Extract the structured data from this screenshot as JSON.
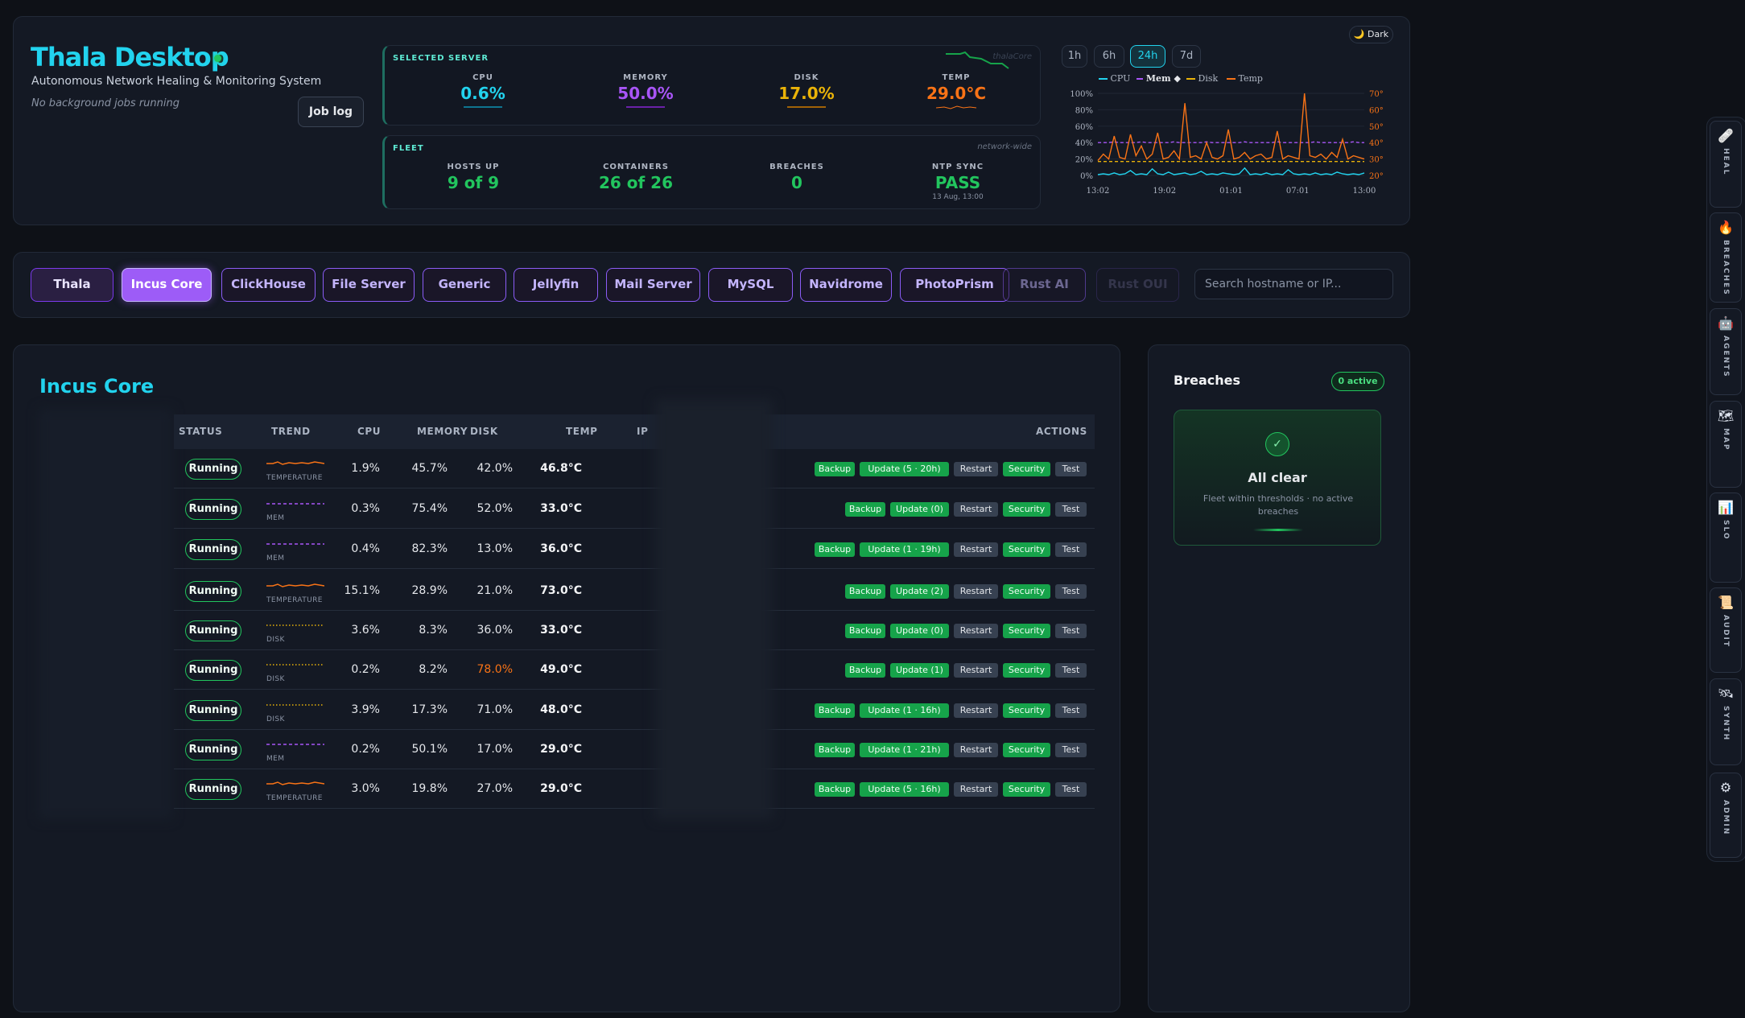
{
  "header": {
    "app_title": "Thala Desktop",
    "subtitle": "Autonomous Network Healing & Monitoring System",
    "job_status": "No background jobs running",
    "job_log_label": "Job log"
  },
  "selected_server": {
    "title": "SELECTED SERVER",
    "host_note": "thalaCore",
    "metrics": [
      {
        "label": "CPU",
        "value": "0.6%",
        "color": "#22d3ee"
      },
      {
        "label": "MEMORY",
        "value": "50.0%",
        "color": "#a855f7"
      },
      {
        "label": "DISK",
        "value": "17.0%",
        "color": "#eab308"
      },
      {
        "label": "TEMP",
        "value": "29.0°C",
        "color": "#f97316"
      }
    ]
  },
  "fleet": {
    "title": "FLEET",
    "note": "network-wide",
    "metrics": [
      {
        "label": "HOSTS UP",
        "value": "9 of 9",
        "color": "#22c55e"
      },
      {
        "label": "CONTAINERS",
        "value": "26 of 26",
        "color": "#22c55e"
      },
      {
        "label": "BREACHES",
        "value": "0",
        "color": "#22c55e"
      },
      {
        "label": "NTP SYNC",
        "value": "PASS",
        "color": "#22c55e",
        "sub": "13 Aug, 13:00"
      }
    ]
  },
  "range": {
    "buttons": [
      "1h",
      "6h",
      "24h",
      "7d"
    ],
    "active": "24h",
    "theme_toggle": "🌙 Dark"
  },
  "chart_data": {
    "type": "line",
    "series": [
      {
        "name": "CPU",
        "color": "#22d3ee",
        "dash": "solid",
        "values": [
          1,
          2,
          1,
          3,
          1,
          2,
          6,
          1,
          2,
          1,
          8,
          2,
          1,
          4,
          1,
          2,
          3,
          1,
          2,
          5,
          1,
          2,
          1,
          3,
          2,
          1,
          2,
          9,
          1,
          2,
          1,
          3,
          1,
          2,
          1,
          7,
          2,
          1,
          2,
          1,
          3,
          1,
          2,
          1,
          4,
          2,
          1,
          2,
          1,
          3
        ]
      },
      {
        "name": "Mem",
        "color": "#a855f7",
        "dash": "dashed",
        "values": [
          40,
          40,
          40,
          41,
          40,
          40,
          40,
          40,
          41,
          40,
          40,
          40,
          40,
          40,
          41,
          40,
          40,
          40,
          40,
          40,
          41,
          40,
          40,
          40,
          40,
          40,
          40,
          41,
          40,
          40,
          40,
          40,
          40,
          41,
          40,
          40,
          40,
          40,
          40,
          40,
          41,
          40,
          40,
          40,
          40,
          40,
          40,
          41,
          40,
          40
        ]
      },
      {
        "name": "Disk",
        "color": "#eab308",
        "dash": "dashed",
        "values": [
          17,
          17,
          17,
          17,
          17,
          17,
          17,
          17,
          17,
          17,
          17,
          17,
          17,
          17,
          17,
          17,
          17,
          17,
          17,
          17,
          17,
          17,
          17,
          17,
          17,
          17,
          17,
          17,
          17,
          17,
          17,
          17,
          17,
          17,
          17,
          17,
          17,
          17,
          17,
          17,
          17,
          17,
          17,
          17,
          17,
          17,
          17,
          17,
          17,
          17
        ]
      },
      {
        "name": "Temp",
        "color": "#f97316",
        "dash": "solid",
        "axis": "right",
        "values": [
          29,
          33,
          30,
          44,
          31,
          30,
          45,
          32,
          38,
          30,
          33,
          46,
          30,
          31,
          35,
          30,
          64,
          31,
          32,
          30,
          40,
          31,
          30,
          32,
          48,
          30,
          31,
          34,
          30,
          32,
          33,
          30,
          31,
          47,
          30,
          32,
          31,
          30,
          70,
          32,
          31,
          33,
          30,
          34,
          31,
          42,
          30,
          32,
          31,
          30
        ]
      }
    ],
    "x_ticks": [
      "13:02",
      "19:02",
      "01:01",
      "07:01",
      "13:00"
    ],
    "y_left_ticks": [
      "100%",
      "80%",
      "60%",
      "40%",
      "20%",
      "0%"
    ],
    "y_right_ticks": [
      "70°",
      "60°",
      "50°",
      "40°",
      "30°",
      "20°"
    ],
    "ylim_left": [
      0,
      100
    ],
    "ylim_right": [
      20,
      70
    ],
    "legend_position": "top"
  },
  "tabs": {
    "items": [
      "Thala",
      "Incus Core",
      "ClickHouse",
      "File Server",
      "Generic",
      "Jellyfin",
      "Mail Server",
      "MySQL",
      "Navidrome",
      "PhotoPrism",
      "Rust AI",
      "Rust OUI"
    ],
    "active": "Incus Core"
  },
  "search": {
    "placeholder": "Search hostname or IP..."
  },
  "section": {
    "title": "Incus Core"
  },
  "table": {
    "columns": [
      "STATUS",
      "TREND",
      "CPU",
      "MEMORY",
      "DISK",
      "TEMP",
      "IP",
      "ACTIONS"
    ],
    "rows": [
      {
        "status": "Running",
        "trend": "TEMPERATURE",
        "trend_color": "#f97316",
        "cpu": "1.9%",
        "memory": "45.7%",
        "disk": "42.0%",
        "temp": "46.8°C",
        "update": "Update (5 · 20h)"
      },
      {
        "status": "Running",
        "trend": "MEM",
        "trend_color": "#a855f7",
        "cpu": "0.3%",
        "memory": "75.4%",
        "disk": "52.0%",
        "temp": "33.0°C",
        "update": "Update (0)"
      },
      {
        "status": "Running",
        "trend": "MEM",
        "trend_color": "#a855f7",
        "cpu": "0.4%",
        "memory": "82.3%",
        "disk": "13.0%",
        "temp": "36.0°C",
        "update": "Update (1 · 19h)"
      },
      {
        "status": "Running",
        "trend": "TEMPERATURE",
        "trend_color": "#f97316",
        "cpu": "15.1%",
        "memory": "28.9%",
        "disk": "21.0%",
        "temp": "73.0°C",
        "update": "Update (2)"
      },
      {
        "status": "Running",
        "trend": "DISK",
        "trend_color": "#eab308",
        "cpu": "3.6%",
        "memory": "8.3%",
        "disk": "36.0%",
        "temp": "33.0°C",
        "update": "Update (0)"
      },
      {
        "status": "Running",
        "trend": "DISK",
        "trend_color": "#eab308",
        "cpu": "0.2%",
        "memory": "8.2%",
        "disk": "78.0%",
        "disk_warn": true,
        "temp": "49.0°C",
        "update": "Update (1)"
      },
      {
        "status": "Running",
        "trend": "DISK",
        "trend_color": "#eab308",
        "cpu": "3.9%",
        "memory": "17.3%",
        "disk": "71.0%",
        "temp": "48.0°C",
        "update": "Update (1 · 16h)"
      },
      {
        "status": "Running",
        "trend": "MEM",
        "trend_color": "#a855f7",
        "cpu": "0.2%",
        "memory": "50.1%",
        "disk": "17.0%",
        "temp": "29.0°C",
        "update": "Update (1 · 21h)"
      },
      {
        "status": "Running",
        "trend": "TEMPERATURE",
        "trend_color": "#f97316",
        "cpu": "3.0%",
        "memory": "19.8%",
        "disk": "27.0%",
        "temp": "29.0°C",
        "update": "Update (5 · 16h)"
      }
    ],
    "action_labels": {
      "backup": "Backup",
      "restart": "Restart",
      "security": "Security",
      "test": "Test"
    }
  },
  "breaches": {
    "title": "Breaches",
    "badge": "0 active",
    "clear_title": "All clear",
    "clear_text": "Fleet within thresholds · no active breaches"
  },
  "sidebar": {
    "items": [
      {
        "label": "HEAL",
        "icon": "🩹"
      },
      {
        "label": "BREACHES",
        "icon": "🔥"
      },
      {
        "label": "AGENTS",
        "icon": "🤖"
      },
      {
        "label": "MAP",
        "icon": "🗺"
      },
      {
        "label": "SLO",
        "icon": "📊"
      },
      {
        "label": "AUDIT",
        "icon": "📜"
      },
      {
        "label": "SYNTH",
        "icon": "🛰"
      },
      {
        "label": "ADMIN",
        "icon": "⚙"
      }
    ]
  }
}
